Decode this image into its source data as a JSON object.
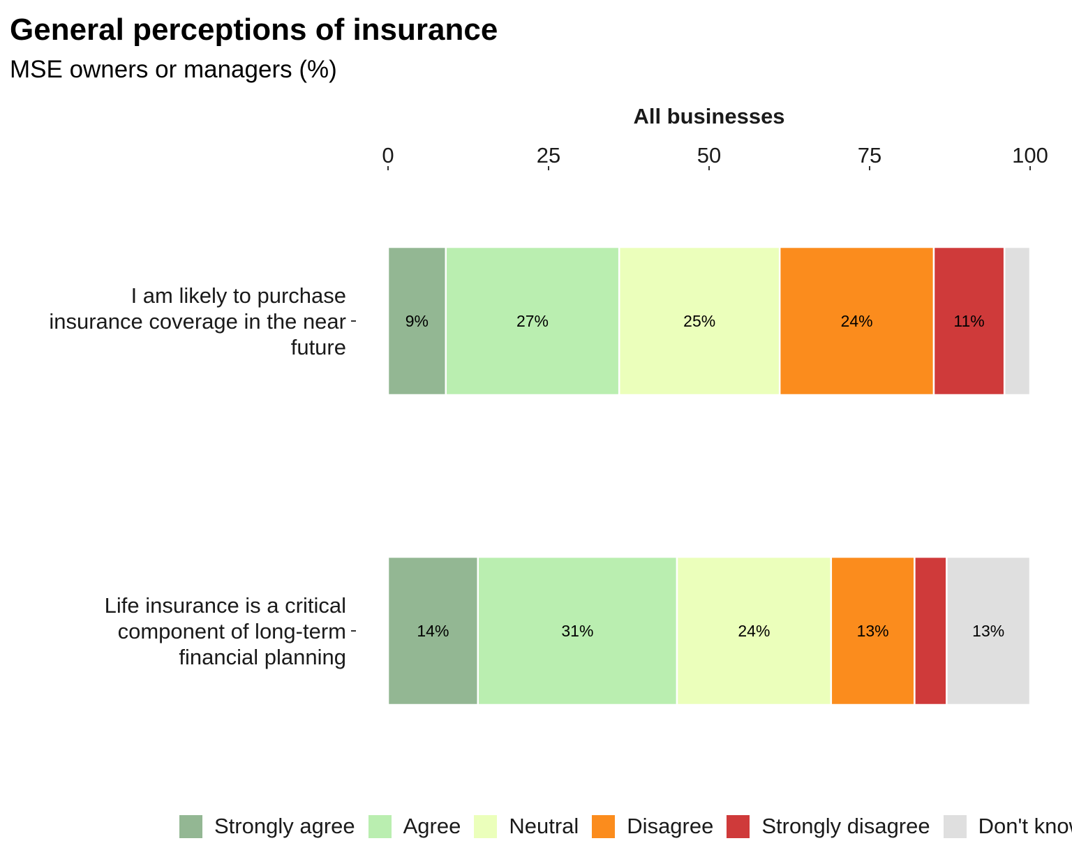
{
  "chart_data": {
    "type": "bar",
    "orientation": "horizontal",
    "stacked": true,
    "title": "General perceptions of insurance",
    "subtitle": "MSE owners or managers (%)",
    "xlabel": "All businesses",
    "xlim": [
      0,
      100
    ],
    "xticks": [
      0,
      25,
      50,
      75,
      100
    ],
    "x_axis_position": "top",
    "grid": false,
    "legend_position": "bottom",
    "categories": [
      [
        "I am likely to purchase",
        "insurance coverage in the near",
        "future"
      ],
      [
        "Life insurance is a critical",
        "component of long-term",
        "financial planning"
      ]
    ],
    "series": [
      {
        "name": "Strongly agree",
        "color": "#93b793",
        "values": [
          9,
          14
        ],
        "labels": [
          "9%",
          "14%"
        ]
      },
      {
        "name": "Agree",
        "color": "#baeeb0",
        "values": [
          27,
          31
        ],
        "labels": [
          "27%",
          "31%"
        ]
      },
      {
        "name": "Neutral",
        "color": "#ebffbb",
        "values": [
          25,
          24
        ],
        "labels": [
          "25%",
          "24%"
        ]
      },
      {
        "name": "Disagree",
        "color": "#fb8c1d",
        "values": [
          24,
          13
        ],
        "labels": [
          "24%",
          "13%"
        ]
      },
      {
        "name": "Strongly disagree",
        "color": "#cf3a3a",
        "values": [
          11,
          5
        ],
        "labels": [
          "11%",
          ""
        ]
      },
      {
        "name": "Don't know",
        "color": "#dfdfdf",
        "values": [
          4,
          13
        ],
        "labels": [
          "",
          "13%"
        ]
      }
    ]
  }
}
